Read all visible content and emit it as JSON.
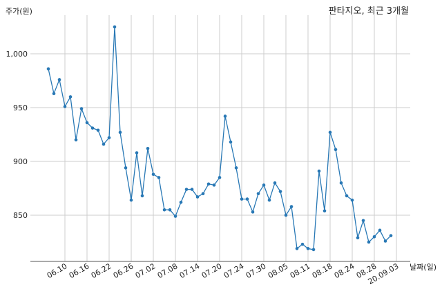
{
  "chart_data": {
    "type": "line",
    "title": "판타지오, 최근 3개월",
    "ylabel": "주가(원)",
    "xlabel": "날짜(일)",
    "ylim": [
      808,
      1028
    ],
    "yticks": [
      850,
      900,
      950,
      1000
    ],
    "ytick_labels": [
      "850",
      "900",
      "950",
      "1,000"
    ],
    "grid": true,
    "color": "#2878b5",
    "x_tick_labels": [
      "06.10",
      "06.16",
      "06.22",
      "06.26",
      "07.02",
      "07.08",
      "07.14",
      "07.20",
      "07.24",
      "07.30",
      "08.05",
      "08.11",
      "08.18",
      "08.24",
      "08.28",
      "20.09.03"
    ],
    "x_tick_index": [
      3,
      7,
      11,
      15,
      19,
      23,
      27,
      31,
      35,
      39,
      43,
      47,
      51,
      55,
      59,
      63
    ],
    "series": [
      {
        "values": [
          986,
          963,
          976,
          951,
          960,
          920,
          949,
          936,
          931,
          929,
          916,
          922,
          1025,
          927,
          894,
          864,
          908,
          868,
          912,
          888,
          885,
          855,
          855,
          849,
          862,
          874,
          874,
          867,
          870,
          879,
          878,
          885,
          942,
          918,
          894,
          865,
          865,
          853,
          870,
          878,
          864,
          880,
          872,
          850,
          858,
          819,
          823,
          819,
          818,
          891,
          854,
          927,
          911,
          880,
          868,
          864,
          829,
          845,
          825,
          830,
          836,
          826,
          831
        ]
      }
    ]
  }
}
